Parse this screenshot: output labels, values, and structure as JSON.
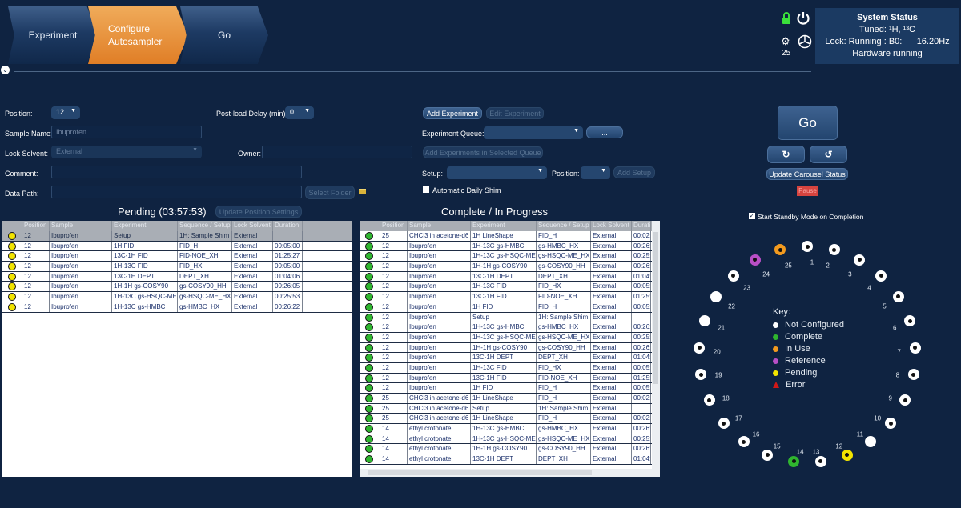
{
  "steps": [
    {
      "label": "Experiment"
    },
    {
      "label": "Configure Autosampler"
    },
    {
      "label": "Go"
    }
  ],
  "status": {
    "title": "System Status",
    "tuned": "Tuned: ¹H, ¹³C",
    "lock": "Lock: Running : B0:",
    "b0": "16.20Hz",
    "hardware": "Hardware running",
    "robot_position": "25"
  },
  "form": {
    "position_label": "Position:",
    "position_value": "12",
    "post_load_label": "Post-load Delay (min)",
    "post_load_value": "0",
    "sample_name_label": "Sample Name:",
    "sample_name_placeholder": "Ibuprofen",
    "lock_solvent_label": "Lock Solvent:",
    "lock_solvent_value": "External",
    "owner_label": "Owner:",
    "owner_value": "",
    "comment_label": "Comment:",
    "comment_value": "",
    "data_path_label": "Data Path:",
    "data_path_value": "",
    "select_folder": "Select Folder"
  },
  "queue": {
    "add_experiment": "Add Experiment",
    "edit_experiment": "Edit Experiment",
    "experiment_queue_label": "Experiment Queue:",
    "experiment_queue_value": "",
    "ellipsis": "...",
    "add_in_queue": "Add Experiments in Selected Queue",
    "setup_label": "Setup:",
    "setup_value": "",
    "position_label": "Position:",
    "position_value": "",
    "add_setup": "Add Setup",
    "auto_shim": "Automatic Daily Shim",
    "auto_shim_checked": false
  },
  "controls": {
    "go": "Go",
    "rotate_cw": "↻",
    "rotate_ccw": "↺",
    "update_carousel": "Update Carousel Status",
    "pause": "Pause",
    "standby": "Start Standby Mode on Completion",
    "standby_checked": true
  },
  "pending": {
    "title": "Pending (03:57:53)",
    "update_button": "Update Position Settings",
    "columns": [
      "",
      "Position",
      "Sample",
      "Experiment",
      "Sequence / Setup",
      "Lock Solvent",
      "Duration"
    ],
    "status_color": "#f2e400",
    "rows": [
      [
        "12",
        "Ibuprofen",
        "Setup",
        "1H: Sample Shim",
        "External",
        ""
      ],
      [
        "12",
        "Ibuprofen",
        "1H FID",
        "FID_H",
        "External",
        "00:05:00"
      ],
      [
        "12",
        "Ibuprofen",
        "13C-1H FID",
        "FID-NOE_XH",
        "External",
        "01:25:27"
      ],
      [
        "12",
        "Ibuprofen",
        "1H-13C FID",
        "FID_HX",
        "External",
        "00:05:00"
      ],
      [
        "12",
        "Ibuprofen",
        "13C-1H DEPT",
        "DEPT_XH",
        "External",
        "01:04:06"
      ],
      [
        "12",
        "Ibuprofen",
        "1H-1H gs-COSY90",
        "gs-COSY90_HH",
        "External",
        "00:26:05"
      ],
      [
        "12",
        "Ibuprofen",
        "1H-13C gs-HSQC-ME",
        "gs-HSQC-ME_HX",
        "External",
        "00:25:53"
      ],
      [
        "12",
        "Ibuprofen",
        "1H-13C gs-HMBC",
        "gs-HMBC_HX",
        "External",
        "00:26:22"
      ]
    ]
  },
  "complete": {
    "title": "Complete / In Progress",
    "columns": [
      "",
      "Position",
      "Sample",
      "Experiment",
      "Sequence / Setup",
      "Lock Solvent",
      "Duration"
    ],
    "status_color": "#2fb52f",
    "rows": [
      [
        "25",
        "CHCl3 in acetone-d6",
        "1H LineShape",
        "FID_H",
        "External",
        "00:02:"
      ],
      [
        "12",
        "Ibuprofen",
        "1H-13C gs-HMBC",
        "gs-HMBC_HX",
        "External",
        "00:26:"
      ],
      [
        "12",
        "Ibuprofen",
        "1H-13C gs-HSQC-ME",
        "gs-HSQC-ME_HX",
        "External",
        "00:25:"
      ],
      [
        "12",
        "Ibuprofen",
        "1H-1H gs-COSY90",
        "gs-COSY90_HH",
        "External",
        "00:26:"
      ],
      [
        "12",
        "Ibuprofen",
        "13C-1H DEPT",
        "DEPT_XH",
        "External",
        "01:04:"
      ],
      [
        "12",
        "Ibuprofen",
        "1H-13C FID",
        "FID_HX",
        "External",
        "00:05:"
      ],
      [
        "12",
        "Ibuprofen",
        "13C-1H FID",
        "FID-NOE_XH",
        "External",
        "01:25:"
      ],
      [
        "12",
        "Ibuprofen",
        "1H FID",
        "FID_H",
        "External",
        "00:05:"
      ],
      [
        "12",
        "Ibuprofen",
        "Setup",
        "1H: Sample Shim",
        "External",
        ""
      ],
      [
        "12",
        "Ibuprofen",
        "1H-13C gs-HMBC",
        "gs-HMBC_HX",
        "External",
        "00:26:"
      ],
      [
        "12",
        "Ibuprofen",
        "1H-13C gs-HSQC-ME",
        "gs-HSQC-ME_HX",
        "External",
        "00:25:"
      ],
      [
        "12",
        "Ibuprofen",
        "1H-1H gs-COSY90",
        "gs-COSY90_HH",
        "External",
        "00:26:"
      ],
      [
        "12",
        "Ibuprofen",
        "13C-1H DEPT",
        "DEPT_XH",
        "External",
        "01:04:"
      ],
      [
        "12",
        "Ibuprofen",
        "1H-13C FID",
        "FID_HX",
        "External",
        "00:05:"
      ],
      [
        "12",
        "Ibuprofen",
        "13C-1H FID",
        "FID-NOE_XH",
        "External",
        "01:25:"
      ],
      [
        "12",
        "Ibuprofen",
        "1H FID",
        "FID_H",
        "External",
        "00:05:"
      ],
      [
        "25",
        "CHCl3 in acetone-d6",
        "1H LineShape",
        "FID_H",
        "External",
        "00:02:"
      ],
      [
        "25",
        "CHCl3 in acetone-d6",
        "Setup",
        "1H: Sample Shim",
        "External",
        ""
      ],
      [
        "25",
        "CHCl3 in acetone-d6",
        "1H LineShape",
        "FID_H",
        "External",
        "00:02:"
      ],
      [
        "14",
        "ethyl crotonate",
        "1H-13C gs-HMBC",
        "gs-HMBC_HX",
        "External",
        "00:26:"
      ],
      [
        "14",
        "ethyl crotonate",
        "1H-13C gs-HSQC-ME",
        "gs-HSQC-ME_HX",
        "External",
        "00:25:"
      ],
      [
        "14",
        "ethyl crotonate",
        "1H-1H gs-COSY90",
        "gs-COSY90_HH",
        "External",
        "00:26:"
      ],
      [
        "14",
        "ethyl crotonate",
        "13C-1H DEPT",
        "DEPT_XH",
        "External",
        "01:04:"
      ]
    ]
  },
  "carousel": {
    "key_title": "Key:",
    "key": [
      {
        "label": "Not Configured",
        "color": "#ffffff"
      },
      {
        "label": "Complete",
        "color": "#2fb52f"
      },
      {
        "label": "In Use",
        "color": "#f29a1f"
      },
      {
        "label": "Reference",
        "color": "#b84fc6"
      },
      {
        "label": "Pending",
        "color": "#f2e400"
      },
      {
        "label": "Error",
        "color": "#d01818"
      }
    ],
    "slots": [
      {
        "n": "1",
        "state": "not-configured"
      },
      {
        "n": "2",
        "state": "not-configured"
      },
      {
        "n": "3",
        "state": "not-configured"
      },
      {
        "n": "4",
        "state": "not-configured"
      },
      {
        "n": "5",
        "state": "not-configured"
      },
      {
        "n": "6",
        "state": "not-configured"
      },
      {
        "n": "7",
        "state": "not-configured"
      },
      {
        "n": "8",
        "state": "not-configured"
      },
      {
        "n": "9",
        "state": "not-configured"
      },
      {
        "n": "10",
        "state": "not-configured"
      },
      {
        "n": "11",
        "state": "empty"
      },
      {
        "n": "12",
        "state": "pending"
      },
      {
        "n": "13",
        "state": "not-configured"
      },
      {
        "n": "14",
        "state": "complete"
      },
      {
        "n": "15",
        "state": "not-configured"
      },
      {
        "n": "16",
        "state": "not-configured"
      },
      {
        "n": "17",
        "state": "not-configured"
      },
      {
        "n": "18",
        "state": "not-configured"
      },
      {
        "n": "19",
        "state": "not-configured"
      },
      {
        "n": "20",
        "state": "not-configured"
      },
      {
        "n": "21",
        "state": "empty"
      },
      {
        "n": "22",
        "state": "empty"
      },
      {
        "n": "23",
        "state": "not-configured"
      },
      {
        "n": "24",
        "state": "reference"
      },
      {
        "n": "25",
        "state": "in-use"
      }
    ]
  }
}
